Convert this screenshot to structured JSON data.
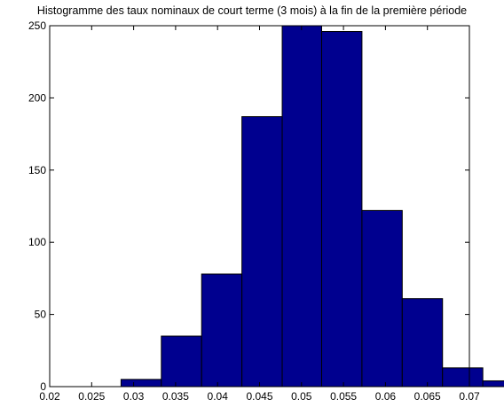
{
  "chart_data": {
    "type": "bar",
    "title": "Histogramme des taux nominaux de court terme (3 mois) à la fin de la première période",
    "xlabel": "",
    "ylabel": "",
    "xlim": [
      0.02,
      0.07
    ],
    "ylim": [
      0,
      250
    ],
    "x_ticks": [
      "0.02",
      "0.025",
      "0.03",
      "0.035",
      "0.04",
      "0.045",
      "0.05",
      "0.055",
      "0.06",
      "0.065",
      "0.07"
    ],
    "y_ticks": [
      "0",
      "50",
      "100",
      "150",
      "200",
      "250"
    ],
    "bins": [
      {
        "start": 0.0285,
        "end": 0.0333,
        "count": 5
      },
      {
        "start": 0.0333,
        "end": 0.0381,
        "count": 35
      },
      {
        "start": 0.0381,
        "end": 0.0429,
        "count": 78
      },
      {
        "start": 0.0429,
        "end": 0.0477,
        "count": 187
      },
      {
        "start": 0.0477,
        "end": 0.0524,
        "count": 250
      },
      {
        "start": 0.0524,
        "end": 0.0572,
        "count": 246
      },
      {
        "start": 0.0572,
        "end": 0.062,
        "count": 122
      },
      {
        "start": 0.062,
        "end": 0.0668,
        "count": 61
      },
      {
        "start": 0.0668,
        "end": 0.0716,
        "count": 13
      },
      {
        "start": 0.0716,
        "end": 0.0764,
        "count": 4
      }
    ],
    "bar_color": "#00008f",
    "bar_edge_color": "#000000",
    "grid": false,
    "box": true
  }
}
